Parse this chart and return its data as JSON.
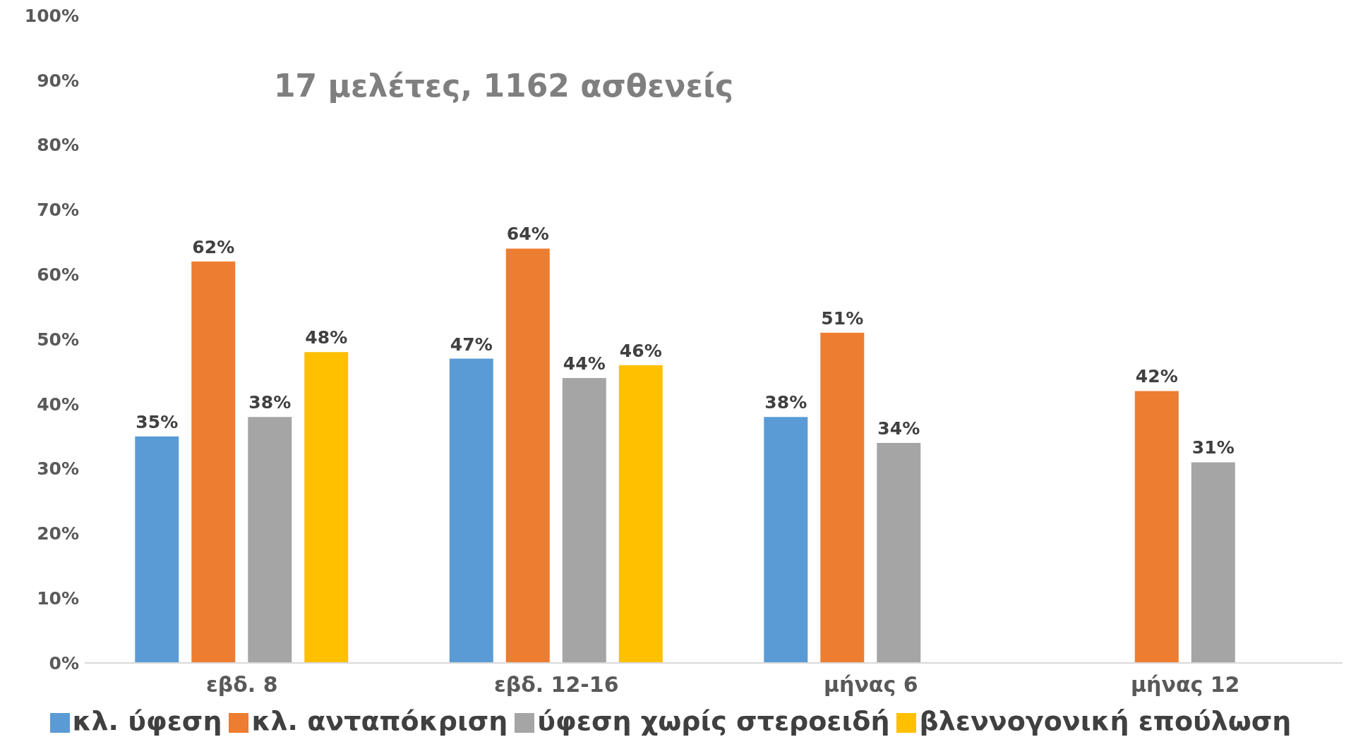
{
  "chart_data": {
    "type": "bar",
    "title": "17 μελέτες, 1162 ασθενείς",
    "categories": [
      "εβδ. 8",
      "εβδ. 12-16",
      "μήνας 6",
      "μήνας 12"
    ],
    "series": [
      {
        "name": "κλ. ύφεση",
        "color": "#5b9bd5",
        "values": [
          35,
          47,
          38,
          null
        ],
        "value_labels": [
          "35%",
          "47%",
          "38%",
          null
        ]
      },
      {
        "name": "κλ. ανταπόκριση",
        "color": "#ed7d31",
        "values": [
          62,
          64,
          51,
          42
        ],
        "value_labels": [
          "62%",
          "64%",
          "51%",
          "42%"
        ]
      },
      {
        "name": "ύφεση χωρίς στεροειδή",
        "color": "#a5a5a5",
        "values": [
          38,
          44,
          34,
          31
        ],
        "value_labels": [
          "38%",
          "44%",
          "34%",
          "31%"
        ]
      },
      {
        "name": "βλεννογονική επούλωση",
        "color": "#ffc000",
        "values": [
          48,
          46,
          null,
          null
        ],
        "value_labels": [
          "48%",
          "46%",
          null,
          null
        ]
      }
    ],
    "ylim": [
      0,
      100
    ],
    "yticks": [
      {
        "value": 0,
        "label": "0%"
      },
      {
        "value": 10,
        "label": "10%"
      },
      {
        "value": 20,
        "label": "20%"
      },
      {
        "value": 30,
        "label": "30%"
      },
      {
        "value": 40,
        "label": "40%"
      },
      {
        "value": 50,
        "label": "50%"
      },
      {
        "value": 60,
        "label": "60%"
      },
      {
        "value": 70,
        "label": "70%"
      },
      {
        "value": 80,
        "label": "80%"
      },
      {
        "value": 90,
        "label": "90%"
      },
      {
        "value": 100,
        "label": "100%"
      }
    ],
    "grid": false,
    "legend": "bottom"
  }
}
